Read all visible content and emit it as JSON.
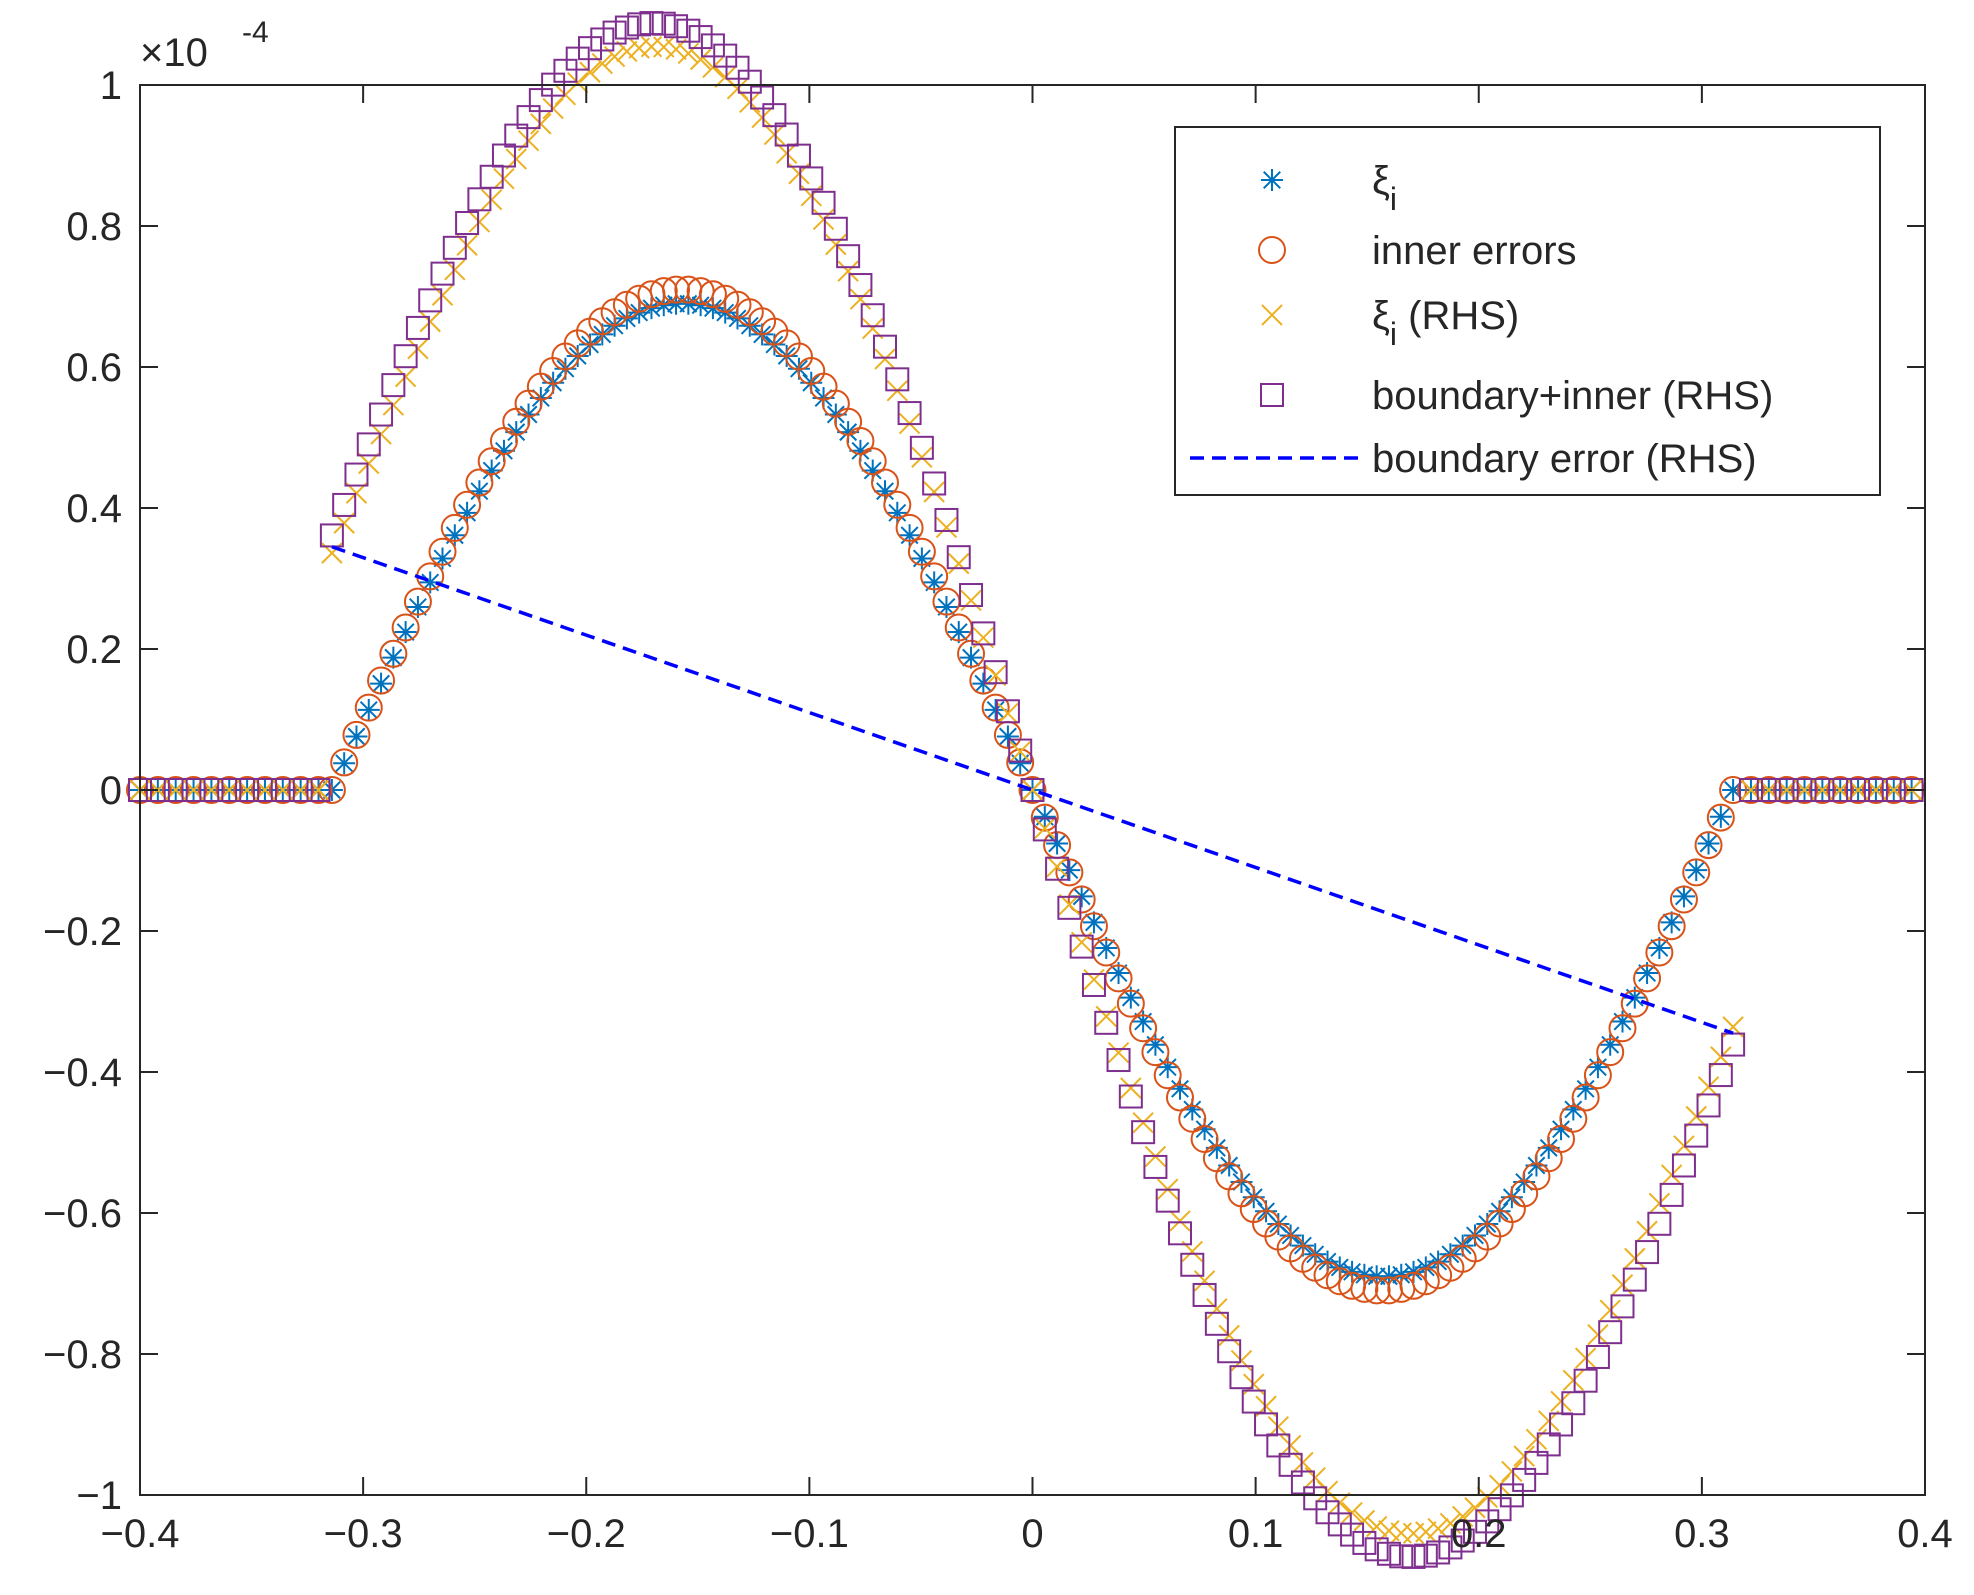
{
  "chart_data": {
    "type": "scatter",
    "title": "",
    "xlabel": "",
    "ylabel": "",
    "xlim": [
      -0.4,
      0.4
    ],
    "ylim": [
      -1,
      1
    ],
    "x_ticks": [
      "-0.4",
      "-0.3",
      "-0.2",
      "-0.1",
      "0",
      "0.1",
      "0.2",
      "0.3",
      "0.4"
    ],
    "y_ticks": [
      "-1",
      "-0.8",
      "-0.6",
      "-0.4",
      "-0.2",
      "0",
      "0.2",
      "0.4",
      "0.6",
      "0.8",
      "1"
    ],
    "y_multiplier": {
      "base": "×10",
      "exponent": "-4"
    },
    "grid": false,
    "legend_position": "top-right",
    "domain_half_width": 0.314,
    "flat_step": 0.008,
    "inner_step": 0.0055,
    "series": [
      {
        "name": "ξ",
        "subscript": "i",
        "suffix": "",
        "marker": "asterisk",
        "color": "#0072BD",
        "amplitude": 0.69,
        "peak_x": 0.157,
        "boundary_slope": 0,
        "edge_value": 0.025
      },
      {
        "name": "inner errors",
        "subscript": "",
        "suffix": "",
        "marker": "circle",
        "color": "#D95319",
        "amplitude": 0.71,
        "peak_x": 0.16,
        "boundary_slope": 0,
        "edge_value": 0.02
      },
      {
        "name": "ξ",
        "subscript": "i",
        "suffix": " (RHS)",
        "marker": "x",
        "color": "#EDB120",
        "amplitude": 0.88,
        "peak_x": 0.175,
        "boundary_slope": -1.07,
        "edge_value": 0.335
      },
      {
        "name": "boundary+inner (RHS)",
        "subscript": "",
        "suffix": "",
        "marker": "square",
        "color": "#7E2F8E",
        "amplitude": 0.9,
        "peak_x": 0.175,
        "boundary_slope": -1.15,
        "edge_value": 0.36
      },
      {
        "name": "boundary error (RHS)",
        "subscript": "",
        "suffix": "",
        "marker": "dashed-line",
        "color": "#0000FF",
        "x": [
          -0.314,
          0.314
        ],
        "y": [
          0.345,
          -0.345
        ]
      }
    ]
  }
}
